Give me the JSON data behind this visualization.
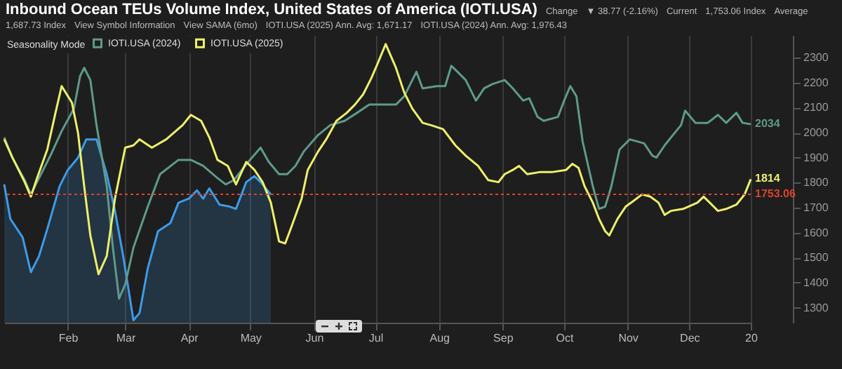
{
  "chart_data": {
    "type": "line",
    "title": "Inbound Ocean TEUs Volume Index, United States of America (IOTI.USA)",
    "annotations": [
      "Change",
      "▼ 38.77 (-2.16%)",
      "Current",
      "1,753.06 Index",
      "Average",
      "1,687.73 Index",
      "View Symbol Information",
      "View SAMA (6mo)",
      "IOTI.USA (2025) Ann. Avg: 1,671.17",
      "IOTI.USA (2024) Ann. Avg: 1,976.43"
    ],
    "legend_title": "Seasonality Mode",
    "legend": "top left",
    "grid": "x",
    "xlim": [
      "--01-01",
      "--12-31"
    ],
    "xticks": [
      {
        "value": "--02-01",
        "label": "Feb"
      },
      {
        "value": "--03-01",
        "label": "Mar"
      },
      {
        "value": "--04-01",
        "label": "Apr"
      },
      {
        "value": "--05-01",
        "label": "May"
      },
      {
        "value": "--06-01",
        "label": "Jun"
      },
      {
        "value": "--07-01",
        "label": "Jul"
      },
      {
        "value": "--08-01",
        "label": "Aug"
      },
      {
        "value": "--09-01",
        "label": "Sep"
      },
      {
        "value": "--10-01",
        "label": "Oct"
      },
      {
        "value": "--11-01",
        "label": "Nov"
      },
      {
        "value": "--12-01",
        "label": "Dec"
      },
      {
        "value": "--12-31",
        "label": "20"
      }
    ],
    "ylim": [
      1240,
      2390
    ],
    "yticks": [
      1300,
      1400,
      1500,
      1600,
      1700,
      1800,
      1900,
      2000,
      2100,
      2200,
      2300
    ],
    "ref_lines": [
      {
        "axis": "y",
        "value": 1753.06,
        "label": "1753.06",
        "color": "#d9432f",
        "line_style": "dotted"
      }
    ],
    "series": [
      {
        "type": "area",
        "color": "#3d9be9",
        "x": [
          "--01-01",
          "--01-04",
          "--01-10",
          "--01-14",
          "--01-18",
          "--01-22",
          "--01-28",
          "--02-01",
          "--02-06",
          "--02-10",
          "--02-15",
          "--02-20",
          "--02-24",
          "--02-28",
          "--03-05",
          "--03-08",
          "--03-12",
          "--03-17",
          "--03-23",
          "--03-27",
          "--04-01",
          "--04-05",
          "--04-08",
          "--04-11",
          "--04-16",
          "--04-21",
          "--04-24",
          "--04-29",
          "--05-03",
          "--05-06",
          "--05-11"
        ],
        "values": [
          1793,
          1655,
          1581,
          1442,
          1507,
          1614,
          1785,
          1851,
          1900,
          1973,
          1973,
          1834,
          1687,
          1507,
          1250,
          1279,
          1458,
          1606,
          1638,
          1720,
          1736,
          1769,
          1736,
          1777,
          1712,
          1704,
          1695,
          1802,
          1826,
          1802,
          1753
        ]
      },
      {
        "name": "IOTI.USA (2024)",
        "color": "#5f9a8b",
        "x": [
          "--01-01",
          "--01-05",
          "--01-11",
          "--01-14",
          "--01-18",
          "--01-24",
          "--01-29",
          "--02-04",
          "--02-07",
          "--02-09",
          "--02-12",
          "--02-15",
          "--02-20",
          "--02-23",
          "--02-26",
          "--03-01",
          "--03-05",
          "--03-12",
          "--03-18",
          "--03-27",
          "--04-02",
          "--04-08",
          "--04-15",
          "--04-19",
          "--04-23",
          "--04-30",
          "--05-06",
          "--05-10",
          "--05-15",
          "--05-19",
          "--05-23",
          "--05-27",
          "--06-03",
          "--06-09",
          "--06-16",
          "--06-22",
          "--06-28",
          "--07-05",
          "--07-11",
          "--07-15",
          "--07-21",
          "--07-24",
          "--07-31",
          "--08-04",
          "--08-07",
          "--08-10",
          "--08-14",
          "--08-19",
          "--08-23",
          "--08-27",
          "--09-02",
          "--09-06",
          "--09-11",
          "--09-14",
          "--09-18",
          "--09-21",
          "--09-28",
          "--10-01",
          "--10-04",
          "--10-07",
          "--10-10",
          "--10-15",
          "--10-18",
          "--10-21",
          "--10-24",
          "--10-28",
          "--11-02",
          "--11-09",
          "--11-13",
          "--11-15",
          "--11-19",
          "--11-23",
          "--11-27",
          "--11-29",
          "--12-04",
          "--12-10",
          "--12-15",
          "--12-19",
          "--12-24",
          "--12-27",
          "--12-31"
        ],
        "values": [
          1981,
          1900,
          1810,
          1753,
          1818,
          1916,
          2006,
          2096,
          2226,
          2259,
          2210,
          2030,
          1785,
          1540,
          1336,
          1393,
          1540,
          1704,
          1834,
          1891,
          1891,
          1867,
          1818,
          1793,
          1810,
          1883,
          1940,
          1883,
          1834,
          1834,
          1867,
          1924,
          1990,
          2030,
          2047,
          2079,
          2112,
          2112,
          2112,
          2145,
          2243,
          2177,
          2186,
          2186,
          2267,
          2243,
          2210,
          2128,
          2177,
          2194,
          2210,
          2177,
          2128,
          2137,
          2063,
          2047,
          2063,
          2128,
          2186,
          2145,
          1965,
          1785,
          1695,
          1704,
          1785,
          1932,
          1973,
          1957,
          1908,
          1900,
          1949,
          1990,
          2030,
          2088,
          2039,
          2039,
          2071,
          2039,
          2079,
          2039,
          2034
        ],
        "value_labels": [
          null,
          null,
          null,
          null,
          null,
          null,
          null,
          null,
          null,
          null,
          null,
          null,
          null,
          null,
          null,
          null,
          null,
          null,
          null,
          null,
          null,
          null,
          null,
          null,
          null,
          null,
          null,
          null,
          null,
          null,
          null,
          null,
          null,
          null,
          null,
          null,
          null,
          null,
          null,
          null,
          null,
          null,
          null,
          null,
          null,
          null,
          null,
          null,
          null,
          null,
          null,
          null,
          null,
          null,
          null,
          null,
          null,
          null,
          null,
          null,
          null,
          null,
          null,
          null,
          null,
          null,
          null,
          null,
          null,
          null,
          null,
          null,
          null,
          null,
          null,
          null,
          null,
          null,
          null,
          null,
          "2034"
        ]
      },
      {
        "name": "IOTI.USA (2025)",
        "color": "#eef06a",
        "x": [
          "--01-01",
          "--01-05",
          "--01-11",
          "--01-14",
          "--01-17",
          "--01-22",
          "--01-26",
          "--01-29",
          "--02-03",
          "--02-06",
          "--02-09",
          "--02-12",
          "--02-16",
          "--02-20",
          "--02-24",
          "--03-01",
          "--03-05",
          "--03-08",
          "--03-14",
          "--03-21",
          "--03-29",
          "--04-02",
          "--04-07",
          "--04-11",
          "--04-15",
          "--04-20",
          "--04-24",
          "--04-29",
          "--05-03",
          "--05-07",
          "--05-11",
          "--05-15",
          "--05-18",
          "--05-21",
          "--05-26",
          "--05-29",
          "--06-03",
          "--06-07",
          "--06-12",
          "--06-17",
          "--06-21",
          "--06-25",
          "--06-29",
          "--07-02",
          "--07-06",
          "--07-11",
          "--07-15",
          "--07-19",
          "--07-24",
          "--07-28",
          "--08-03",
          "--08-09",
          "--08-14",
          "--08-20",
          "--08-25",
          "--08-30",
          "--09-02",
          "--09-06",
          "--09-09",
          "--09-13",
          "--09-19",
          "--09-25",
          "--10-02",
          "--10-05",
          "--10-08",
          "--10-11",
          "--10-15",
          "--10-18",
          "--10-21",
          "--10-23",
          "--10-25",
          "--10-27",
          "--10-31",
          "--11-04",
          "--11-08",
          "--11-12",
          "--11-16",
          "--11-19",
          "--11-22",
          "--11-28",
          "--12-05",
          "--12-08",
          "--12-11",
          "--12-15",
          "--12-19",
          "--12-24",
          "--12-28",
          "--12-31"
        ],
        "values": [
          1973,
          1900,
          1802,
          1744,
          1818,
          1932,
          2079,
          2186,
          2120,
          1998,
          1785,
          1589,
          1434,
          1507,
          1736,
          1940,
          1949,
          1973,
          1940,
          1973,
          2030,
          2071,
          2047,
          1981,
          1891,
          1867,
          1793,
          1883,
          1851,
          1802,
          1720,
          1565,
          1557,
          1622,
          1736,
          1851,
          1924,
          1973,
          2047,
          2079,
          2112,
          2153,
          2218,
          2275,
          2354,
          2259,
          2161,
          2096,
          2039,
          2030,
          2014,
          1949,
          1908,
          1867,
          1810,
          1802,
          1834,
          1851,
          1867,
          1834,
          1842,
          1842,
          1851,
          1875,
          1859,
          1785,
          1720,
          1655,
          1606,
          1589,
          1622,
          1655,
          1704,
          1728,
          1753,
          1744,
          1720,
          1671,
          1687,
          1695,
          1720,
          1744,
          1720,
          1687,
          1695,
          1712,
          1753,
          1814
        ],
        "value_labels": [
          null,
          null,
          null,
          null,
          null,
          null,
          null,
          null,
          null,
          null,
          null,
          null,
          null,
          null,
          null,
          null,
          null,
          null,
          null,
          null,
          null,
          null,
          null,
          null,
          null,
          null,
          null,
          null,
          null,
          null,
          null,
          null,
          null,
          null,
          null,
          null,
          null,
          null,
          null,
          null,
          null,
          null,
          null,
          null,
          null,
          null,
          null,
          null,
          null,
          null,
          null,
          null,
          null,
          null,
          null,
          null,
          null,
          null,
          null,
          null,
          null,
          null,
          null,
          null,
          null,
          null,
          null,
          null,
          null,
          null,
          null,
          null,
          null,
          null,
          null,
          null,
          null,
          null,
          null,
          null,
          null,
          null,
          null,
          null,
          null,
          null,
          null,
          "1814"
        ]
      }
    ]
  }
}
